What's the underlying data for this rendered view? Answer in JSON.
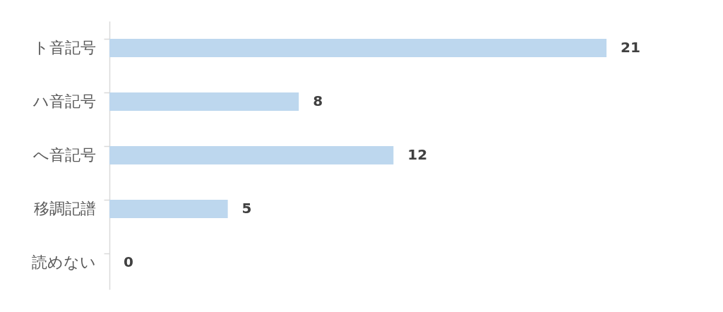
{
  "chart_data": {
    "type": "bar",
    "orientation": "horizontal",
    "categories": [
      "ト音記号",
      "ハ音記号",
      "へ音記号",
      "移調記譜",
      "読めない"
    ],
    "values": [
      21,
      8,
      12,
      5,
      0
    ],
    "color": "#bdd7ee",
    "data_labels": true
  }
}
